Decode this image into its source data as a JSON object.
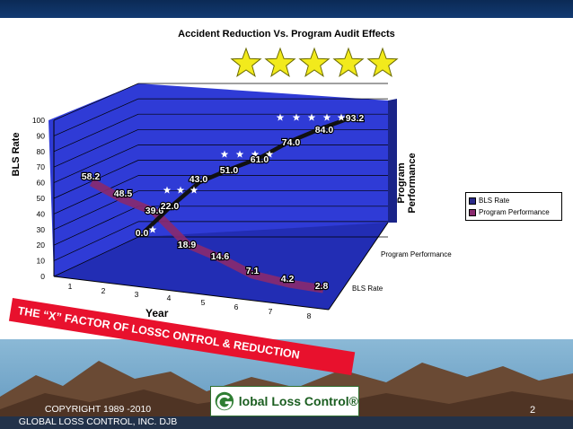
{
  "chart_data": {
    "type": "line",
    "title": "Accident Reduction Vs. Program Audit Effects",
    "xlabel": "Year",
    "ylabel": "BLS Rate",
    "zlabel": "Program Performance",
    "x": [
      1,
      2,
      3,
      4,
      5,
      6,
      7,
      8
    ],
    "ylim": [
      0,
      100
    ],
    "y_ticks": [
      "0",
      "10",
      "20",
      "30",
      "40",
      "50",
      "60",
      "70",
      "80",
      "90",
      "100"
    ],
    "depth_categories": [
      "Program Performance",
      "BLS Rate"
    ],
    "series": [
      {
        "name": "BLS Rate",
        "labels": [
          "58.2",
          "48.5",
          "39.6",
          "18.9",
          "14.6",
          "7.1",
          "4.2",
          "2.8"
        ]
      },
      {
        "name": "Program Performance",
        "labels": [
          "0.0",
          "22.0",
          "43.0",
          "51.0",
          "61.0",
          "74.0",
          "84.0",
          "93.2"
        ]
      }
    ],
    "legend": "right",
    "grid": true
  },
  "colors": {
    "wall": "#2f3bd6",
    "bls_line": "#8a2a6e",
    "program_line": "#111111",
    "banner": "#e8112d",
    "top_bar": "#0b2a55",
    "marker": "#ffffff"
  },
  "banner": {
    "text": "THE  “X”  FACTOR OF LOSSC ONTROL & REDUCTION"
  },
  "footer": {
    "copyright_line1": "COPYRIGHT 1989 -2010",
    "copyright_line2": "GLOBAL LOSS CONTROL, INC. DJB",
    "page_number": "2",
    "logo_text": "lobal Loss Control®"
  },
  "decor": {
    "rating_stars": 5
  }
}
